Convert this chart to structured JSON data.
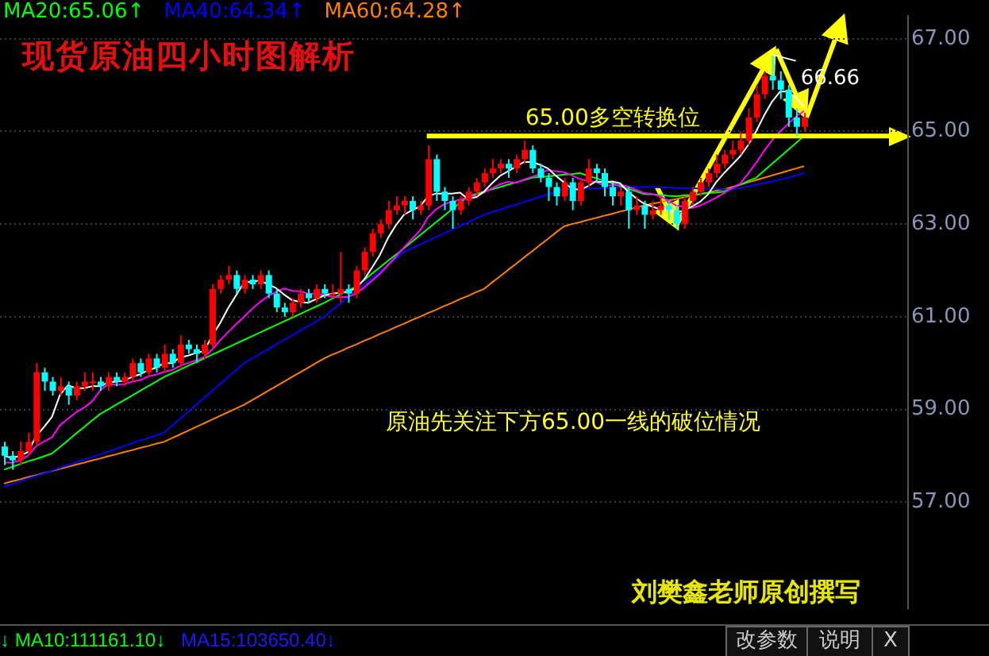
{
  "chart_data": {
    "type": "candlestick",
    "title": "现货原油四小时图解析",
    "categories": [
      null,
      null,
      null,
      null,
      null,
      null,
      null,
      null,
      null,
      null,
      null,
      null,
      null,
      null,
      null,
      null,
      null,
      null,
      null,
      null,
      null,
      null,
      null,
      null,
      null,
      null,
      null,
      null,
      null,
      null,
      null,
      null,
      null,
      null,
      null,
      null,
      null,
      null,
      null,
      null,
      null,
      null,
      null,
      null,
      null,
      null,
      null,
      null,
      null,
      null,
      null,
      null,
      null,
      null,
      null,
      null,
      null,
      null,
      null,
      null,
      null,
      null,
      null,
      null,
      null,
      null,
      null,
      null,
      null,
      null,
      null,
      null,
      null,
      null,
      null,
      null,
      null,
      null,
      null,
      null,
      null,
      null,
      null,
      null,
      null,
      null,
      null,
      null,
      null,
      null,
      null,
      null,
      null,
      null,
      null,
      null,
      null,
      null,
      null,
      null,
      null
    ],
    "ohlc": [
      [
        58.2,
        58.3,
        57.8,
        58.0
      ],
      [
        58.0,
        58.1,
        57.7,
        57.9
      ],
      [
        57.9,
        58.3,
        57.8,
        58.1
      ],
      [
        58.1,
        58.5,
        58.0,
        58.3
      ],
      [
        58.3,
        60.0,
        58.2,
        59.8
      ],
      [
        59.8,
        59.9,
        59.4,
        59.6
      ],
      [
        59.6,
        59.7,
        59.3,
        59.4
      ],
      [
        59.4,
        59.7,
        59.3,
        59.5
      ],
      [
        59.5,
        59.6,
        59.1,
        59.3
      ],
      [
        59.3,
        59.6,
        59.2,
        59.5
      ],
      [
        59.5,
        59.8,
        59.4,
        59.6
      ],
      [
        59.6,
        59.8,
        59.4,
        59.6
      ],
      [
        59.6,
        59.7,
        59.4,
        59.5
      ],
      [
        59.5,
        59.8,
        59.4,
        59.7
      ],
      [
        59.7,
        59.8,
        59.5,
        59.6
      ],
      [
        59.6,
        59.8,
        59.5,
        59.7
      ],
      [
        59.7,
        60.1,
        59.6,
        60.0
      ],
      [
        60.0,
        60.1,
        59.7,
        59.8
      ],
      [
        59.8,
        60.2,
        59.7,
        60.1
      ],
      [
        60.1,
        60.2,
        59.8,
        59.9
      ],
      [
        59.9,
        60.4,
        59.8,
        60.2
      ],
      [
        60.2,
        60.3,
        59.9,
        60.0
      ],
      [
        60.0,
        60.6,
        59.9,
        60.4
      ],
      [
        60.4,
        60.5,
        60.2,
        60.3
      ],
      [
        60.3,
        60.4,
        60.0,
        60.2
      ],
      [
        60.2,
        60.5,
        60.1,
        60.4
      ],
      [
        60.4,
        61.7,
        60.3,
        61.6
      ],
      [
        61.6,
        61.9,
        61.5,
        61.8
      ],
      [
        61.8,
        62.1,
        61.7,
        61.9
      ],
      [
        61.9,
        62.0,
        61.5,
        61.6
      ],
      [
        61.6,
        61.9,
        61.5,
        61.8
      ],
      [
        61.8,
        61.9,
        61.6,
        61.7
      ],
      [
        61.7,
        62.0,
        61.6,
        61.9
      ],
      [
        61.9,
        62.0,
        61.4,
        61.5
      ],
      [
        61.5,
        61.6,
        61.1,
        61.2
      ],
      [
        61.2,
        61.3,
        61.0,
        61.1
      ],
      [
        61.1,
        61.4,
        61.0,
        61.3
      ],
      [
        61.3,
        61.6,
        61.2,
        61.5
      ],
      [
        61.5,
        61.6,
        61.3,
        61.4
      ],
      [
        61.4,
        61.7,
        61.3,
        61.6
      ],
      [
        61.6,
        61.7,
        61.4,
        61.5
      ],
      [
        61.5,
        61.7,
        61.4,
        61.5
      ],
      [
        61.5,
        62.4,
        61.3,
        61.6
      ],
      [
        61.6,
        61.7,
        61.3,
        61.5
      ],
      [
        61.5,
        62.1,
        61.4,
        62.0
      ],
      [
        62.0,
        62.5,
        61.9,
        62.4
      ],
      [
        62.4,
        62.9,
        62.3,
        62.8
      ],
      [
        62.8,
        63.1,
        62.7,
        63.0
      ],
      [
        63.0,
        63.5,
        62.9,
        63.3
      ],
      [
        63.3,
        63.6,
        63.2,
        63.4
      ],
      [
        63.4,
        63.6,
        63.2,
        63.5
      ],
      [
        63.5,
        63.6,
        63.1,
        63.3
      ],
      [
        63.3,
        63.5,
        63.2,
        63.4
      ],
      [
        63.4,
        64.7,
        63.3,
        64.4
      ],
      [
        64.4,
        64.5,
        63.5,
        63.7
      ],
      [
        63.7,
        63.8,
        63.3,
        63.5
      ],
      [
        63.5,
        63.6,
        62.9,
        63.3
      ],
      [
        63.3,
        63.6,
        63.2,
        63.5
      ],
      [
        63.5,
        63.8,
        63.4,
        63.7
      ],
      [
        63.7,
        64.0,
        63.6,
        63.9
      ],
      [
        63.9,
        64.2,
        63.8,
        64.1
      ],
      [
        64.1,
        64.4,
        64.0,
        64.2
      ],
      [
        64.2,
        64.4,
        64.1,
        64.3
      ],
      [
        64.3,
        64.4,
        64.0,
        64.2
      ],
      [
        64.2,
        64.5,
        64.1,
        64.4
      ],
      [
        64.4,
        64.8,
        64.3,
        64.6
      ],
      [
        64.6,
        64.7,
        64.1,
        64.2
      ],
      [
        64.2,
        64.3,
        63.9,
        64.0
      ],
      [
        64.0,
        64.1,
        63.5,
        63.8
      ],
      [
        63.8,
        63.9,
        63.4,
        63.6
      ],
      [
        63.6,
        64.0,
        63.5,
        63.9
      ],
      [
        63.9,
        64.0,
        63.3,
        63.5
      ],
      [
        63.5,
        64.0,
        63.4,
        63.9
      ],
      [
        63.9,
        64.4,
        63.8,
        64.2
      ],
      [
        64.2,
        64.3,
        63.9,
        64.1
      ],
      [
        64.1,
        64.2,
        63.6,
        63.8
      ],
      [
        63.8,
        63.9,
        63.4,
        63.6
      ],
      [
        63.6,
        63.8,
        63.4,
        63.7
      ],
      [
        63.7,
        63.8,
        62.9,
        63.3
      ],
      [
        63.3,
        63.6,
        63.2,
        63.4
      ],
      [
        63.4,
        63.5,
        62.9,
        63.2
      ],
      [
        63.2,
        63.5,
        63.1,
        63.3
      ],
      [
        63.3,
        63.6,
        63.2,
        63.4
      ],
      [
        63.4,
        63.5,
        63.1,
        63.3
      ],
      [
        63.3,
        63.4,
        62.9,
        63.0
      ],
      [
        63.0,
        63.6,
        62.9,
        63.5
      ],
      [
        63.5,
        63.8,
        63.4,
        63.7
      ],
      [
        63.7,
        64.0,
        63.6,
        63.9
      ],
      [
        63.9,
        64.2,
        63.8,
        64.1
      ],
      [
        64.1,
        64.5,
        64.0,
        64.3
      ],
      [
        64.3,
        64.6,
        64.2,
        64.5
      ],
      [
        64.5,
        64.8,
        64.4,
        64.6
      ],
      [
        64.6,
        65.0,
        64.5,
        64.8
      ],
      [
        64.8,
        65.5,
        64.7,
        65.3
      ],
      [
        65.3,
        66.0,
        65.2,
        65.8
      ],
      [
        65.8,
        66.3,
        65.7,
        66.2
      ],
      [
        66.2,
        66.66,
        65.9,
        66.1
      ],
      [
        66.1,
        66.3,
        65.7,
        65.9
      ],
      [
        65.9,
        66.0,
        65.1,
        65.3
      ],
      [
        65.3,
        65.5,
        64.9,
        65.1
      ],
      [
        65.1,
        65.4,
        65.0,
        65.3
      ]
    ],
    "colors": [
      "#00ffff",
      "#00ffff",
      "#ff0000",
      "#ff0000",
      "#ff0000",
      "#00ffff",
      "#00ffff",
      "#ff0000",
      "#00ffff",
      "#ff0000",
      "#ff0000",
      "#ff0000",
      "#00ffff",
      "#ff0000",
      "#00ffff",
      "#ff0000",
      "#ff0000",
      "#00ffff",
      "#ff0000",
      "#00ffff",
      "#ff0000",
      "#00ffff",
      "#ff0000",
      "#00ffff",
      "#00ffff",
      "#ff0000",
      "#ff0000",
      "#ff0000",
      "#ff0000",
      "#00ffff",
      "#ff0000",
      "#00ffff",
      "#ff0000",
      "#00ffff",
      "#00ffff",
      "#00ffff",
      "#ff0000",
      "#ff0000",
      "#00ffff",
      "#ff0000",
      "#00ffff",
      "#ff0000",
      "#ff0000",
      "#00ffff",
      "#ff0000",
      "#ff0000",
      "#ff0000",
      "#ff0000",
      "#ff0000",
      "#ff0000",
      "#ff0000",
      "#00ffff",
      "#ff0000",
      "#ff0000",
      "#00ffff",
      "#00ffff",
      "#00ffff",
      "#ff0000",
      "#ff0000",
      "#ff0000",
      "#ff0000",
      "#ff0000",
      "#ff0000",
      "#00ffff",
      "#ff0000",
      "#ff0000",
      "#00ffff",
      "#00ffff",
      "#00ffff",
      "#00ffff",
      "#ff0000",
      "#00ffff",
      "#ff0000",
      "#ff0000",
      "#00ffff",
      "#00ffff",
      "#00ffff",
      "#ff0000",
      "#00ffff",
      "#ff0000",
      "#00ffff",
      "#ff0000",
      "#ff0000",
      "#00ffff",
      "#00ffff",
      "#ff0000",
      "#ff0000",
      "#ff0000",
      "#ff0000",
      "#ff0000",
      "#ff0000",
      "#ff0000",
      "#ff0000",
      "#ff0000",
      "#ff0000",
      "#ff0000",
      "#00ffff",
      "#00ffff",
      "#00ffff",
      "#00ffff",
      "#ff0000"
    ],
    "series": [
      {
        "type": "line",
        "color": "#ffffff",
        "values": [
          58.0,
          57.95,
          58.0,
          58.08,
          58.42,
          58.62,
          58.84,
          59.32,
          59.52,
          59.46,
          59.46,
          59.5,
          59.5,
          59.58,
          59.6,
          59.62,
          59.7,
          59.76,
          59.84,
          59.9,
          60.0,
          60.0,
          60.12,
          60.16,
          60.22,
          60.26,
          60.58,
          60.86,
          61.18,
          61.46,
          61.74,
          61.76,
          61.78,
          61.7,
          61.62,
          61.48,
          61.36,
          61.32,
          61.3,
          61.38,
          61.46,
          61.5,
          61.52,
          61.54,
          61.62,
          61.8,
          62.06,
          62.34,
          62.7,
          62.98,
          63.2,
          63.3,
          63.38,
          63.6,
          63.66,
          63.66,
          63.66,
          63.68,
          63.54,
          63.58,
          63.7,
          63.88,
          64.04,
          64.14,
          64.24,
          64.34,
          64.34,
          64.28,
          64.2,
          64.04,
          63.9,
          63.76,
          63.74,
          63.82,
          63.92,
          63.9,
          63.92,
          63.88,
          63.7,
          63.56,
          63.44,
          63.38,
          63.32,
          63.32,
          63.24,
          63.3,
          63.38,
          63.48,
          63.64,
          63.9,
          64.1,
          64.28,
          64.46,
          64.7,
          65.0,
          65.34,
          65.64,
          65.86,
          65.86,
          65.72,
          65.54
        ]
      },
      {
        "type": "line",
        "color": "#ff00ff",
        "values": [
          57.85,
          57.85,
          57.9,
          58.0,
          58.2,
          58.31,
          58.4,
          58.66,
          58.8,
          58.94,
          59.04,
          59.17,
          59.41,
          59.55,
          59.53,
          59.54,
          59.6,
          59.63,
          59.71,
          59.75,
          59.81,
          59.85,
          59.94,
          60.0,
          60.06,
          60.13,
          60.29,
          60.49,
          60.67,
          60.84,
          61.0,
          61.17,
          61.32,
          61.44,
          61.54,
          61.61,
          61.56,
          61.55,
          61.5,
          61.5,
          61.47,
          61.43,
          61.42,
          61.43,
          61.5,
          61.63,
          61.78,
          61.93,
          62.12,
          62.3,
          62.5,
          62.68,
          62.86,
          63.15,
          63.32,
          63.43,
          63.48,
          63.53,
          63.56,
          63.62,
          63.68,
          63.77,
          63.86,
          63.91,
          63.89,
          63.96,
          64.02,
          64.08,
          64.17,
          64.14,
          64.12,
          64.05,
          63.97,
          63.93,
          63.91,
          63.83,
          63.84,
          63.85,
          63.81,
          63.74,
          63.67,
          63.65,
          63.6,
          63.51,
          63.4,
          63.37,
          63.35,
          63.4,
          63.48,
          63.57,
          63.67,
          63.78,
          63.87,
          64.09,
          64.32,
          64.58,
          64.81,
          65.0,
          65.16,
          65.32,
          65.44
        ]
      },
      {
        "type": "line",
        "name": "MA20:65.06↑",
        "color": "#00ff00",
        "values": [
          57.7,
          57.76,
          57.82,
          57.88,
          57.93,
          57.99,
          58.05,
          58.19,
          58.33,
          58.48,
          58.62,
          58.76,
          58.9,
          59.0,
          59.1,
          59.2,
          59.3,
          59.4,
          59.5,
          59.6,
          59.7,
          59.78,
          59.86,
          59.94,
          60.02,
          60.1,
          60.18,
          60.26,
          60.34,
          60.42,
          60.5,
          60.58,
          60.66,
          60.74,
          60.82,
          60.9,
          60.98,
          61.06,
          61.14,
          61.22,
          61.3,
          61.39,
          61.48,
          61.56,
          61.65,
          61.79,
          61.93,
          62.07,
          62.21,
          62.34,
          62.48,
          62.62,
          62.76,
          62.9,
          63.04,
          63.18,
          63.32,
          63.46,
          63.6,
          63.65,
          63.7,
          63.75,
          63.8,
          63.85,
          63.9,
          63.95,
          64.0,
          64.02,
          64.03,
          64.05,
          64.07,
          64.08,
          64.1,
          64.04,
          63.99,
          63.93,
          63.88,
          63.82,
          63.76,
          63.71,
          63.65,
          63.64,
          63.63,
          63.61,
          63.6,
          63.62,
          63.63,
          63.65,
          63.67,
          63.68,
          63.7,
          63.78,
          63.85,
          63.93,
          64.0,
          64.15,
          64.3,
          64.45,
          64.6,
          64.75,
          64.9
        ]
      },
      {
        "type": "line",
        "name": "MA40:64.34↑",
        "color": "#0000ff",
        "values": [
          57.33,
          57.39,
          57.45,
          57.51,
          57.56,
          57.62,
          57.68,
          57.74,
          57.8,
          57.86,
          57.92,
          57.97,
          58.03,
          58.09,
          58.15,
          58.21,
          58.27,
          58.33,
          58.38,
          58.44,
          58.5,
          58.65,
          58.8,
          58.95,
          59.1,
          59.25,
          59.4,
          59.55,
          59.7,
          59.85,
          60.0,
          60.1,
          60.2,
          60.3,
          60.4,
          60.5,
          60.6,
          60.7,
          60.8,
          60.9,
          61.0,
          61.14,
          61.28,
          61.42,
          61.56,
          61.7,
          61.84,
          61.98,
          62.12,
          62.26,
          62.4,
          62.48,
          62.56,
          62.64,
          62.72,
          62.8,
          62.88,
          62.96,
          63.04,
          63.12,
          63.2,
          63.26,
          63.31,
          63.37,
          63.42,
          63.48,
          63.53,
          63.59,
          63.64,
          63.7,
          63.75,
          63.76,
          63.76,
          63.77,
          63.77,
          63.78,
          63.78,
          63.79,
          63.79,
          63.8,
          63.8,
          63.8,
          63.79,
          63.79,
          63.78,
          63.78,
          63.77,
          63.77,
          63.76,
          63.76,
          63.75,
          63.75,
          63.78,
          63.81,
          63.85,
          63.88,
          63.92,
          63.96,
          64.0,
          64.05,
          64.1
        ]
      },
      {
        "type": "line",
        "name": "MA60:64.28↑",
        "color": "#ff8000",
        "values": [
          57.4,
          57.45,
          57.49,
          57.54,
          57.58,
          57.63,
          57.67,
          57.72,
          57.76,
          57.81,
          57.85,
          57.9,
          57.94,
          57.99,
          58.03,
          58.08,
          58.12,
          58.17,
          58.21,
          58.26,
          58.3,
          58.38,
          58.46,
          58.54,
          58.62,
          58.7,
          58.78,
          58.86,
          58.94,
          59.02,
          59.1,
          59.2,
          59.3,
          59.4,
          59.5,
          59.6,
          59.7,
          59.8,
          59.9,
          60.0,
          60.1,
          60.18,
          60.25,
          60.33,
          60.4,
          60.48,
          60.55,
          60.63,
          60.7,
          60.78,
          60.85,
          60.93,
          61.0,
          61.08,
          61.15,
          61.23,
          61.3,
          61.38,
          61.45,
          61.53,
          61.6,
          61.74,
          61.87,
          62.01,
          62.14,
          62.28,
          62.41,
          62.55,
          62.68,
          62.82,
          62.95,
          63.0,
          63.04,
          63.09,
          63.13,
          63.18,
          63.22,
          63.27,
          63.31,
          63.36,
          63.4,
          63.44,
          63.47,
          63.51,
          63.54,
          63.58,
          63.61,
          63.65,
          63.68,
          63.72,
          63.75,
          63.8,
          63.85,
          63.9,
          63.95,
          64.0,
          64.05,
          64.1,
          64.15,
          64.2,
          64.25
        ]
      }
    ],
    "ylim": [
      54.7,
      67.5
    ],
    "yticks": [
      {
        "value": 57,
        "label": "57.00"
      },
      {
        "value": 59,
        "label": "59.00"
      },
      {
        "value": 61,
        "label": "61.00"
      },
      {
        "value": 63,
        "label": "63.00"
      },
      {
        "value": 65,
        "label": "65.00"
      },
      {
        "value": 67,
        "label": "67.00"
      }
    ],
    "tick_labels": "y",
    "grid": "y",
    "legend": "top left",
    "ref_lines": [
      {
        "axis": "y",
        "value": 64.9,
        "label": "65.00多空转换位",
        "color": "#ffff00"
      }
    ],
    "annotations": [
      "原油先关注下方65.00一线的破位情况",
      "刘樊鑫老师原创撰写",
      "66.66",
      "↓ MA10:111161.10↓",
      "MA15:103650.40↓",
      "改参数",
      "说明",
      "X"
    ]
  }
}
